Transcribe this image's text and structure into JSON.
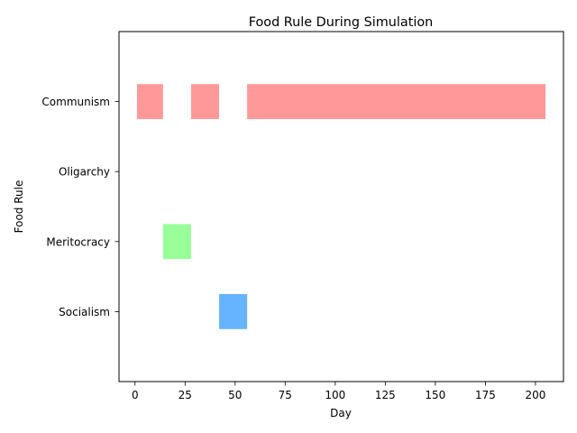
{
  "chart_data": {
    "type": "bar",
    "orientation": "horizontal-timeline",
    "title": "Food Rule During Simulation",
    "xlabel": "Day",
    "ylabel": "Food Rule",
    "xlim": [
      -8,
      214
    ],
    "x_ticks": [
      0,
      25,
      50,
      75,
      100,
      125,
      150,
      175,
      200
    ],
    "categories": [
      "Communism",
      "Oligarchy",
      "Meritocracy",
      "Socialism"
    ],
    "grid": false,
    "series": [
      {
        "category": "Communism",
        "color": "#ff9999",
        "segments": [
          [
            1,
            14
          ],
          [
            28,
            42
          ],
          [
            56,
            205
          ]
        ]
      },
      {
        "category": "Oligarchy",
        "color": "#ffcc99",
        "segments": []
      },
      {
        "category": "Meritocracy",
        "color": "#99ff99",
        "segments": [
          [
            14,
            28
          ]
        ]
      },
      {
        "category": "Socialism",
        "color": "#66b3ff",
        "segments": [
          [
            42,
            56
          ]
        ]
      }
    ]
  }
}
